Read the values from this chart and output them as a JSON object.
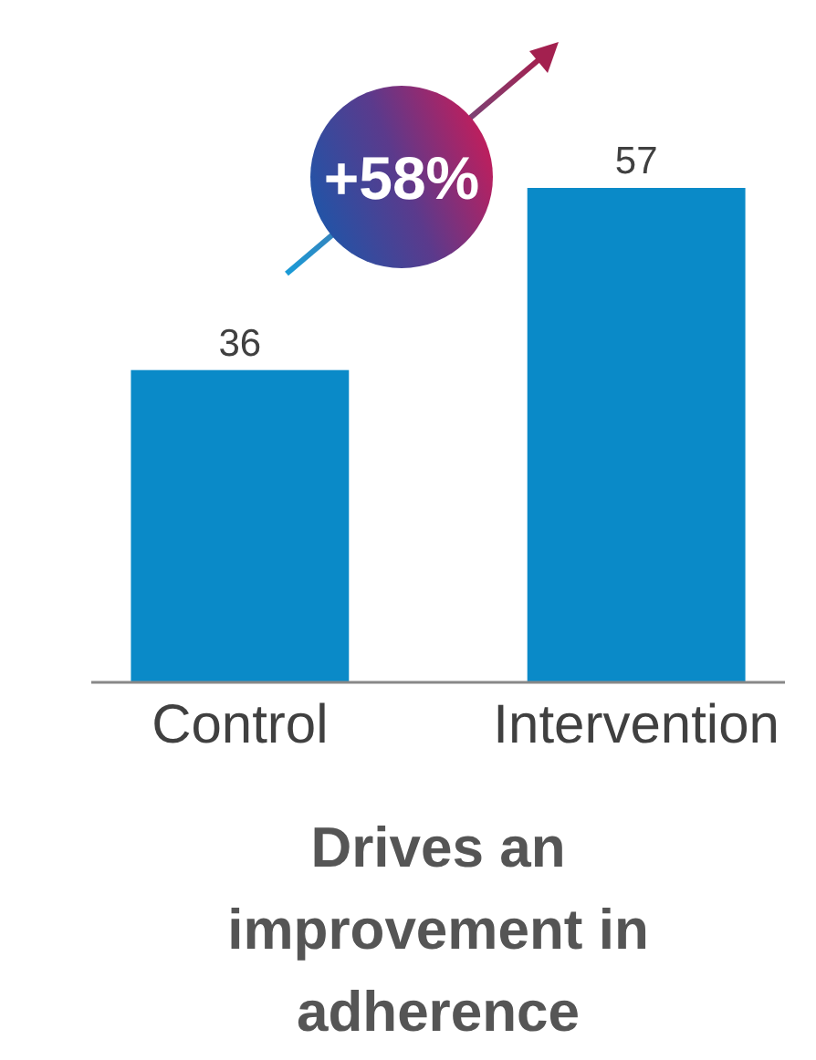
{
  "chart_data": {
    "type": "bar",
    "title": "Drives an improvement in adherence",
    "categories": [
      "Control",
      "Intervention"
    ],
    "values": [
      36,
      57
    ],
    "color": "#0a8ac8",
    "data_labels": true,
    "annotations": [
      "+58%"
    ]
  }
}
